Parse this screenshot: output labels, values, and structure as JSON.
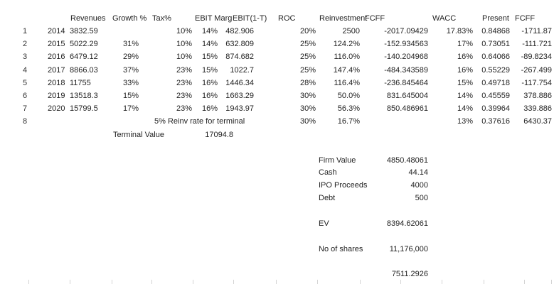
{
  "header": {
    "revenues": "Revenues",
    "growth": "Growth %",
    "tax": "Tax%",
    "ebit_margin": "EBIT Marg",
    "ebit_1t": "EBIT(1-T)",
    "roc": "ROC",
    "reinvestment": "Reinvestment",
    "fcff": "FCFF",
    "wacc": "WACC",
    "present": "Present",
    "fcff2": "FCFF"
  },
  "rows": [
    {
      "n": "1",
      "year": "2014",
      "rev": "3832.59",
      "growth": "",
      "tax": "10%",
      "margin": "14%",
      "ebit": "482.906",
      "roc": "20%",
      "reinv": "2500",
      "fcff": "-2017.09429",
      "wacc": "17.83%",
      "pv": "0.84868",
      "pfcff": "-1711.87"
    },
    {
      "n": "2",
      "year": "2015",
      "rev": "5022.29",
      "growth": "31%",
      "tax": "10%",
      "margin": "14%",
      "ebit": "632.809",
      "roc": "25%",
      "reinv": "124.2%",
      "fcff": "-152.934563",
      "wacc": "17%",
      "pv": "0.73051",
      "pfcff": "-111.721"
    },
    {
      "n": "3",
      "year": "2016",
      "rev": "6479.12",
      "growth": "29%",
      "tax": "10%",
      "margin": "15%",
      "ebit": "874.682",
      "roc": "25%",
      "reinv": "116.0%",
      "fcff": "-140.204968",
      "wacc": "16%",
      "pv": "0.64066",
      "pfcff": "-89.8234"
    },
    {
      "n": "4",
      "year": "2017",
      "rev": "8866.03",
      "growth": "37%",
      "tax": "23%",
      "margin": "15%",
      "ebit": "1022.7",
      "roc": "25%",
      "reinv": "147.4%",
      "fcff": "-484.343589",
      "wacc": "16%",
      "pv": "0.55229",
      "pfcff": "-267.499"
    },
    {
      "n": "5",
      "year": "2018",
      "rev": "11755",
      "growth": "33%",
      "tax": "23%",
      "margin": "16%",
      "ebit": "1446.34",
      "roc": "28%",
      "reinv": "116.4%",
      "fcff": "-236.845464",
      "wacc": "15%",
      "pv": "0.49718",
      "pfcff": "-117.754"
    },
    {
      "n": "6",
      "year": "2019",
      "rev": "13518.3",
      "growth": "15%",
      "tax": "23%",
      "margin": "16%",
      "ebit": "1663.29",
      "roc": "30%",
      "reinv": "50.0%",
      "fcff": "831.645004",
      "wacc": "14%",
      "pv": "0.45559",
      "pfcff": "378.886"
    },
    {
      "n": "7",
      "year": "2020",
      "rev": "15799.5",
      "growth": "17%",
      "tax": "23%",
      "margin": "16%",
      "ebit": "1943.97",
      "roc": "30%",
      "reinv": "56.3%",
      "fcff": "850.486961",
      "wacc": "14%",
      "pv": "0.39964",
      "pfcff": "339.886"
    },
    {
      "n": "8",
      "year": "",
      "rev": "",
      "growth": "",
      "tax": "",
      "margin": "",
      "ebit": "",
      "roc": "30%",
      "reinv": "16.7%",
      "fcff": "",
      "wacc": "13%",
      "pv": "0.37616",
      "pfcff": "6430.37"
    }
  ],
  "row8_note": "5% Reinv rate for terminal",
  "terminal": {
    "label": "Terminal Value",
    "value": "17094.8"
  },
  "summary": [
    {
      "label": "Firm Value",
      "value": "4850.48061"
    },
    {
      "label": "Cash",
      "value": "44.14"
    },
    {
      "label": "IPO Proceeds",
      "value": "4000"
    },
    {
      "label": "Debt",
      "value": "500"
    },
    {
      "label": "EV",
      "value": "8394.62061"
    },
    {
      "label": "No of shares",
      "value": "11,176,000"
    },
    {
      "label": "",
      "value": "7511.2926"
    }
  ]
}
